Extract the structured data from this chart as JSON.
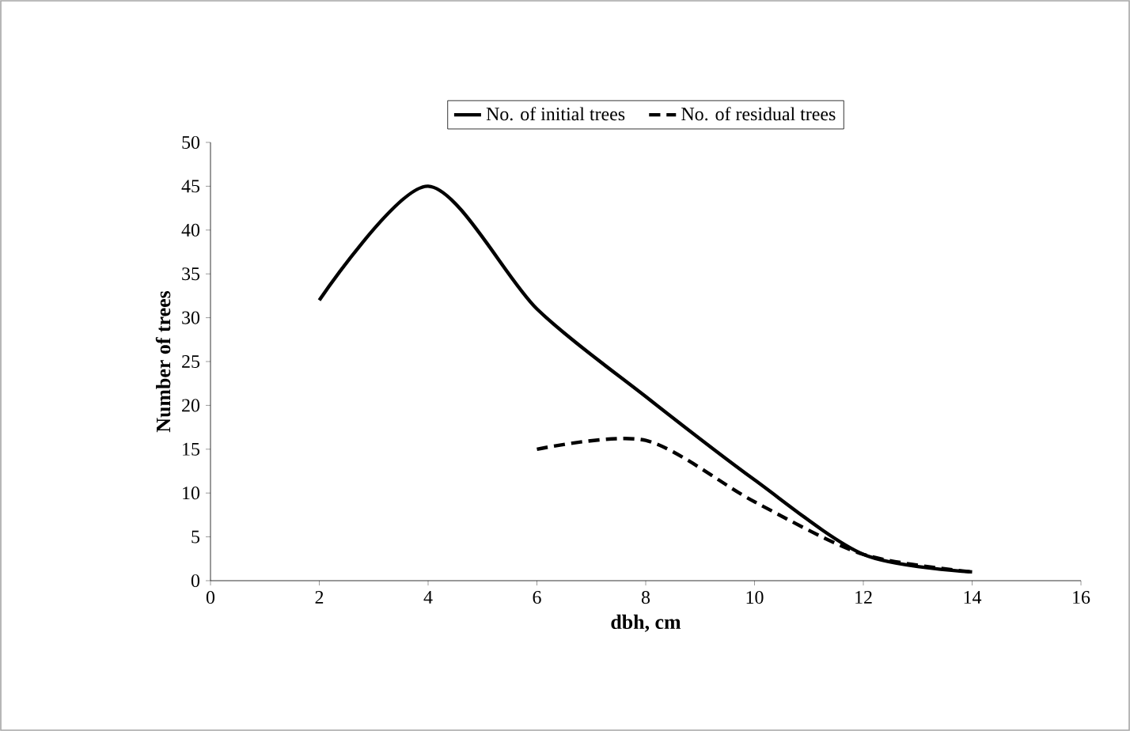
{
  "chart_data": {
    "type": "line",
    "xlabel": "dbh, cm",
    "ylabel": "Number of trees",
    "xlim": [
      0,
      16
    ],
    "xticks": [
      0,
      2,
      4,
      6,
      8,
      10,
      12,
      14,
      16
    ],
    "ylim": [
      0,
      50
    ],
    "yticks": [
      0,
      5,
      10,
      15,
      20,
      25,
      30,
      35,
      40,
      45,
      50
    ],
    "legend": "top",
    "marker": "none",
    "series": [
      {
        "name": "No. of initial trees",
        "color": "#000000",
        "line_style": "solid",
        "x": [
          2,
          4,
          6,
          8,
          10,
          12,
          14
        ],
        "values": [
          32,
          45,
          31,
          21,
          11.5,
          3,
          1
        ]
      },
      {
        "name": "No. of residual trees",
        "color": "#000000",
        "line_style": "dashed",
        "x": [
          6,
          8,
          10,
          12,
          14
        ],
        "values": [
          15,
          16,
          9,
          3,
          1
        ]
      }
    ]
  }
}
